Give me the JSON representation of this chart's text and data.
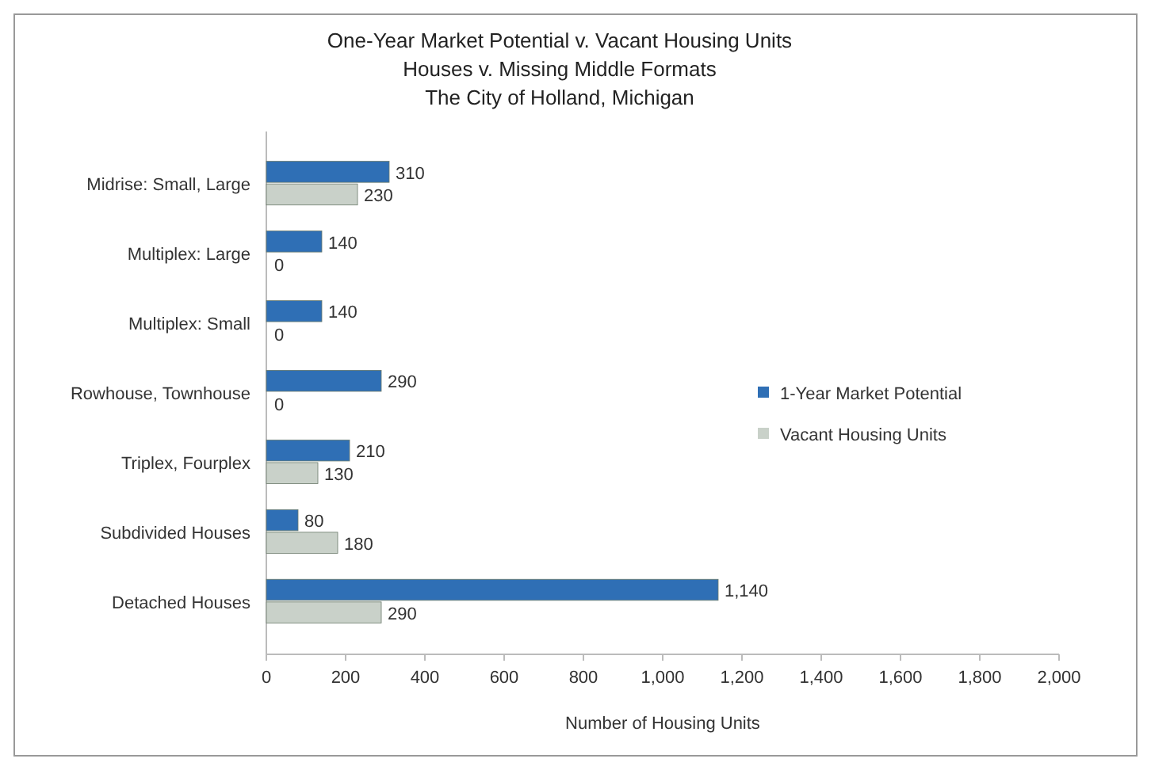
{
  "chart_data": {
    "type": "bar",
    "orientation": "horizontal",
    "title": "One-Year Market Potential v. Vacant Housing Units",
    "subtitle": "Houses v. Missing Middle Formats\nThe City of Holland, Michigan",
    "xlabel": "Number of Housing Units",
    "categories": [
      "Midrise: Small, Large",
      "Multiplex: Large",
      "Multiplex: Small",
      "Rowhouse, Townhouse",
      "Triplex, Fourplex",
      "Subdivided Houses",
      "Detached Houses"
    ],
    "series": [
      {
        "name": "1-Year Market Potential",
        "color": "#2f6fb5",
        "values": [
          310,
          140,
          140,
          290,
          210,
          80,
          1140
        ],
        "value_labels": [
          "310",
          "140",
          "140",
          "290",
          "210",
          "80",
          "1,140"
        ]
      },
      {
        "name": "Vacant Housing Units",
        "color": "#c9d1c9",
        "values": [
          230,
          0,
          0,
          0,
          130,
          180,
          290
        ],
        "value_labels": [
          "230",
          "0",
          "0",
          "0",
          "130",
          "180",
          "290"
        ]
      }
    ],
    "xlim": [
      0,
      2000
    ],
    "xticks": [
      0,
      200,
      400,
      600,
      800,
      {
        "value": 1000,
        "label": "1,000"
      },
      {
        "value": 1200,
        "label": "1,200"
      },
      {
        "value": 1400,
        "label": "1,400"
      },
      {
        "value": 1600,
        "label": "1,600"
      },
      {
        "value": 1800,
        "label": "1,800"
      },
      {
        "value": 2000,
        "label": "2,000"
      }
    ],
    "grid": false,
    "legend": "right"
  }
}
